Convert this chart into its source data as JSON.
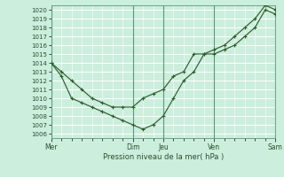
{
  "xlabel": "Pression niveau de la mer( hPa )",
  "ylim": [
    1005.5,
    1020.5
  ],
  "yticks": [
    1006,
    1007,
    1008,
    1009,
    1010,
    1011,
    1012,
    1013,
    1014,
    1015,
    1016,
    1017,
    1018,
    1019,
    1020
  ],
  "xtick_labels": [
    "Mer",
    "Dim",
    "Jeu",
    "Ven",
    "Sam"
  ],
  "xtick_positions": [
    0,
    4,
    5.5,
    8,
    11
  ],
  "vline_positions": [
    0,
    4,
    5.5,
    8,
    11
  ],
  "bg_color": "#cceedd",
  "grid_color": "#b0d8c8",
  "vline_color": "#5a9a7a",
  "line_color": "#2d5e2d",
  "line1_x": [
    0,
    0.5,
    1.0,
    1.5,
    2.0,
    2.5,
    3.0,
    3.5,
    4.0,
    4.5,
    5.0,
    5.5,
    6.0,
    6.5,
    7.0,
    7.5,
    8.0,
    8.5,
    9.0,
    9.5,
    10.0,
    10.5,
    11.0
  ],
  "line1_y": [
    1014,
    1013,
    1012,
    1011,
    1010,
    1009.5,
    1009,
    1009,
    1009,
    1010,
    1010.5,
    1011,
    1012.5,
    1013,
    1015,
    1015,
    1015.5,
    1016,
    1017,
    1018,
    1019,
    1020.5,
    1020
  ],
  "line2_x": [
    0,
    0.5,
    1.0,
    1.5,
    2.0,
    2.5,
    3.0,
    3.5,
    4.0,
    4.5,
    5.0,
    5.5,
    6.0,
    6.5,
    7.0,
    7.5,
    8.0,
    8.5,
    9.0,
    9.5,
    10.0,
    10.5,
    11.0
  ],
  "line2_y": [
    1014,
    1012.5,
    1010,
    1009.5,
    1009,
    1008.5,
    1008,
    1007.5,
    1007,
    1006.5,
    1007,
    1008,
    1010,
    1012,
    1013,
    1015,
    1015,
    1015.5,
    1016,
    1017,
    1018,
    1020,
    1019.5
  ]
}
